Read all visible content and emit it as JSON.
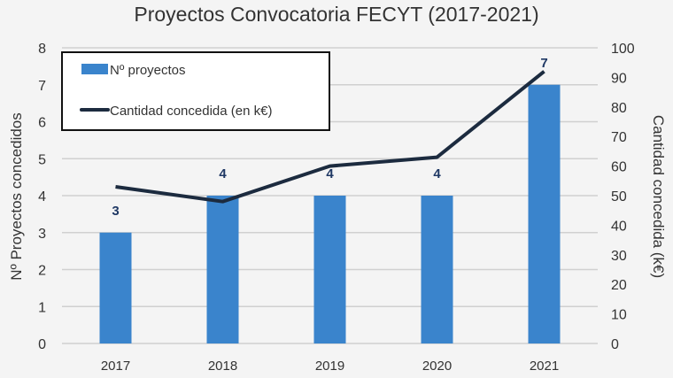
{
  "chart_data": {
    "type": "bar+line",
    "title": "Proyectos Convocatoria FECYT (2017-2021)",
    "categories": [
      "2017",
      "2018",
      "2019",
      "2020",
      "2021"
    ],
    "series": [
      {
        "name": "Nº proyectos",
        "type": "bar",
        "axis": "left",
        "values": [
          3,
          4,
          4,
          4,
          7
        ],
        "color": "#3a84cc"
      },
      {
        "name": "Cantidad concedida (en k€)",
        "type": "line",
        "axis": "right",
        "values": [
          53,
          48,
          60,
          63,
          92
        ],
        "color": "#1c2b3f"
      }
    ],
    "ylabel": "Nº Proyectos concedidos",
    "y2label": "Cantidad concedida (k€)",
    "ylim": [
      0,
      8
    ],
    "y2lim": [
      0,
      100
    ],
    "yticks": [
      "0",
      "1",
      "2",
      "3",
      "4",
      "5",
      "6",
      "7",
      "8"
    ],
    "y2ticks": [
      "0",
      "10",
      "20",
      "30",
      "40",
      "50",
      "60",
      "70",
      "80",
      "90",
      "100"
    ],
    "data_labels": [
      "3",
      "4",
      "4",
      "4",
      "7"
    ],
    "grid": true,
    "legend": "top-left"
  }
}
